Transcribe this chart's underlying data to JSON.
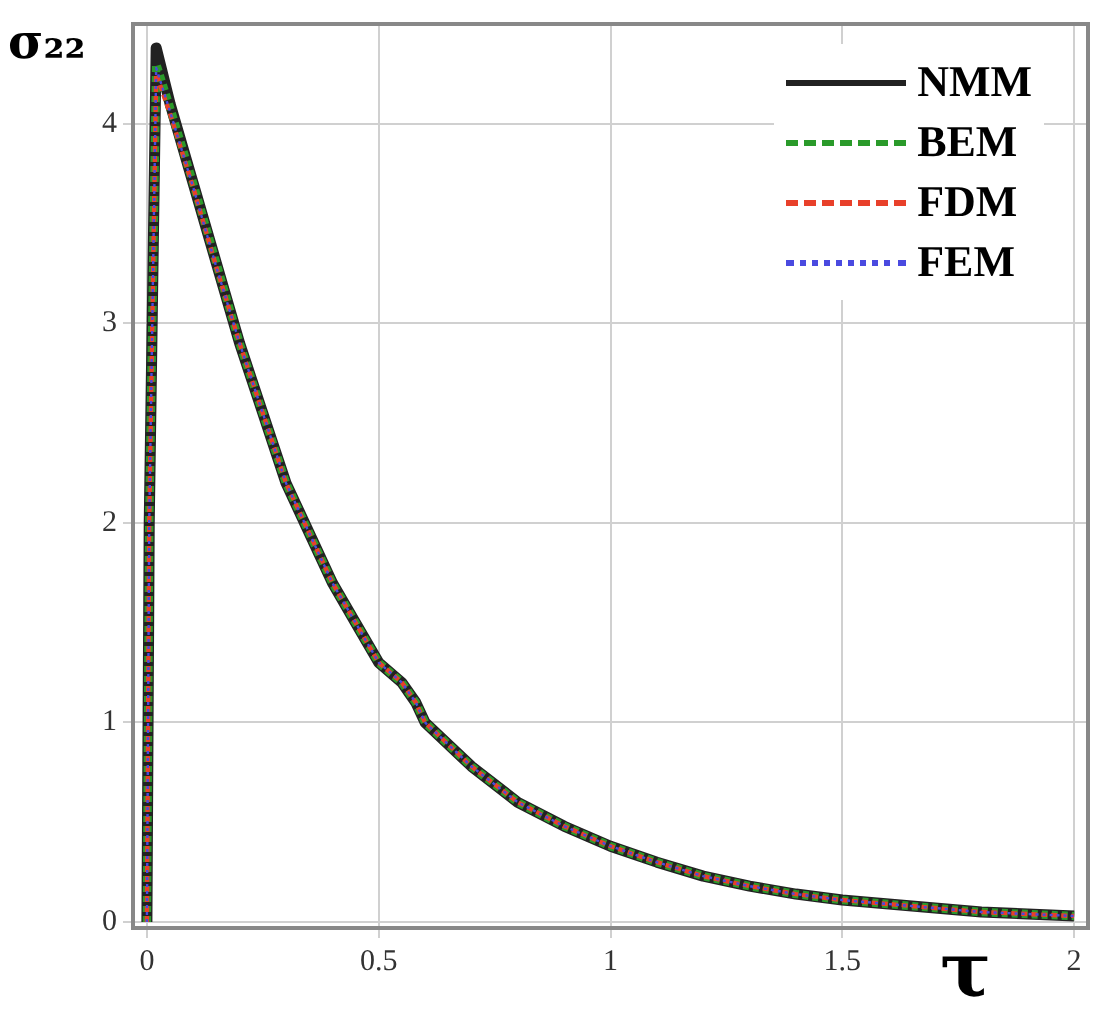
{
  "chart_data": {
    "type": "line",
    "xlabel": "τ",
    "ylabel": "σ₂₂",
    "x": [
      0,
      0.005,
      0.02,
      0.05,
      0.1,
      0.15,
      0.2,
      0.25,
      0.3,
      0.35,
      0.4,
      0.45,
      0.5,
      0.55,
      0.58,
      0.6,
      0.7,
      0.8,
      0.9,
      1.0,
      1.1,
      1.2,
      1.3,
      1.4,
      1.5,
      1.6,
      1.7,
      1.8,
      1.9,
      2.0
    ],
    "series": [
      {
        "name": "NMM",
        "color": "#222222",
        "line_style": "solid",
        "values": [
          0,
          2.0,
          4.38,
          4.1,
          3.7,
          3.3,
          2.9,
          2.55,
          2.2,
          1.95,
          1.7,
          1.5,
          1.3,
          1.2,
          1.1,
          1.0,
          0.78,
          0.6,
          0.48,
          0.38,
          0.3,
          0.23,
          0.18,
          0.14,
          0.11,
          0.09,
          0.07,
          0.05,
          0.04,
          0.03
        ]
      },
      {
        "name": "BEM",
        "color": "#2a9a2a",
        "line_style": "dashed",
        "values": [
          0,
          2.0,
          4.3,
          4.08,
          3.7,
          3.3,
          2.9,
          2.55,
          2.2,
          1.95,
          1.7,
          1.5,
          1.3,
          1.2,
          1.1,
          1.0,
          0.78,
          0.6,
          0.48,
          0.38,
          0.3,
          0.23,
          0.18,
          0.14,
          0.11,
          0.09,
          0.07,
          0.05,
          0.04,
          0.03
        ]
      },
      {
        "name": "FDM",
        "color": "#e8402a",
        "line_style": "dashed",
        "values": [
          0,
          2.0,
          4.25,
          4.05,
          3.68,
          3.28,
          2.9,
          2.55,
          2.2,
          1.95,
          1.7,
          1.5,
          1.3,
          1.2,
          1.1,
          1.0,
          0.78,
          0.6,
          0.48,
          0.38,
          0.3,
          0.23,
          0.18,
          0.14,
          0.11,
          0.09,
          0.07,
          0.05,
          0.04,
          0.03
        ]
      },
      {
        "name": "FEM",
        "color": "#4a4ae0",
        "line_style": "dotted",
        "values": [
          0,
          2.0,
          4.28,
          4.06,
          3.68,
          3.28,
          2.9,
          2.55,
          2.2,
          1.95,
          1.7,
          1.5,
          1.3,
          1.2,
          1.1,
          1.0,
          0.78,
          0.6,
          0.48,
          0.38,
          0.3,
          0.23,
          0.18,
          0.14,
          0.11,
          0.09,
          0.07,
          0.05,
          0.04,
          0.03
        ]
      }
    ],
    "xlim": [
      -0.03,
      2.03
    ],
    "ylim": [
      -0.03,
      4.5
    ],
    "xticks": [
      0,
      0.5,
      1,
      1.5,
      2
    ],
    "yticks": [
      0,
      1,
      2,
      3,
      4
    ],
    "grid": true,
    "legend": "top right",
    "marker": "none"
  }
}
